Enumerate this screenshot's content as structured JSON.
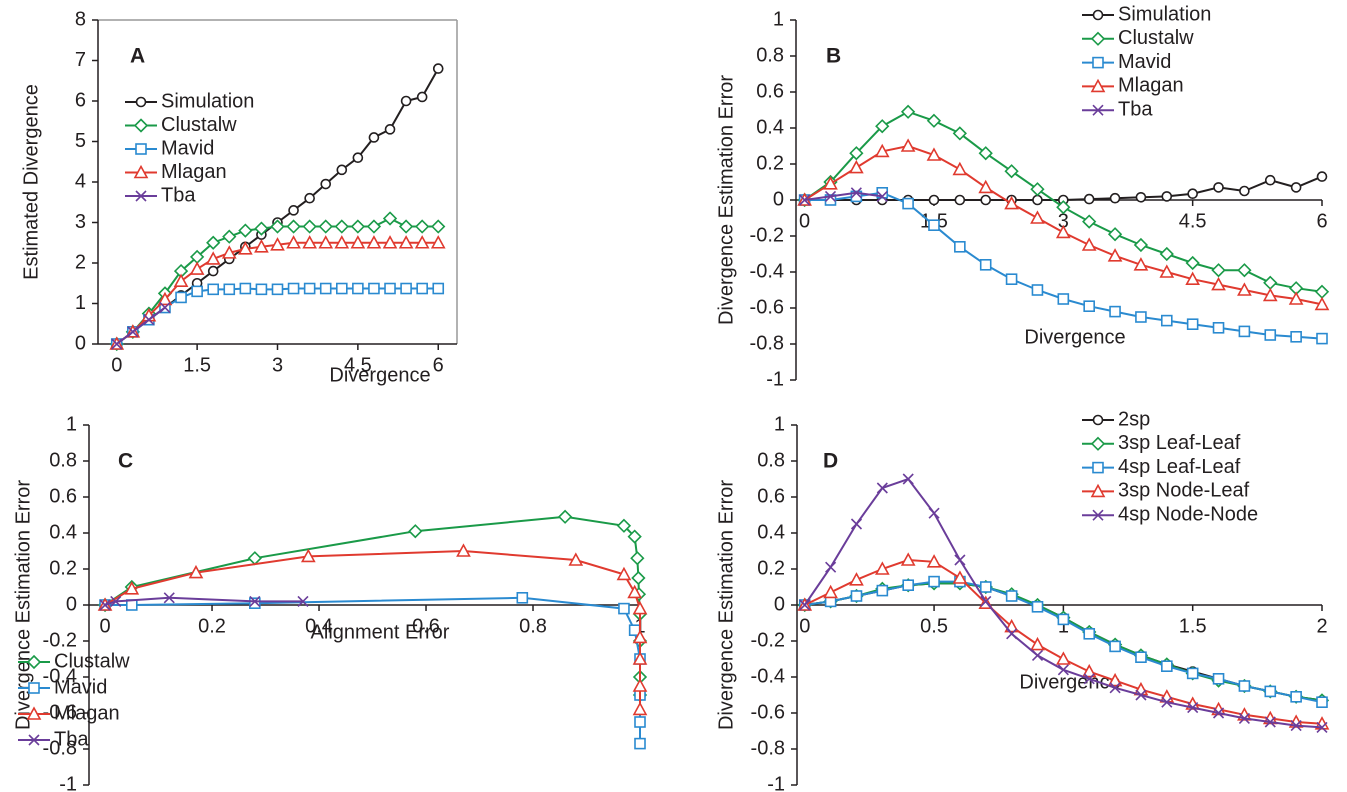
{
  "chart_data": [
    {
      "type": "line",
      "panel_label": "A",
      "x_label": "Divergence",
      "y_label": "Estimated Divergence",
      "xlim": [
        -0.35,
        6.35
      ],
      "ylim": [
        0,
        8
      ],
      "xticks": [
        0,
        1.5,
        3,
        4.5,
        6
      ],
      "yticks": [
        0,
        1,
        2,
        3,
        4,
        5,
        6,
        7,
        8
      ],
      "legend": "upper left",
      "frame": true,
      "x": [
        0,
        0.3,
        0.6,
        0.9,
        1.2,
        1.5,
        1.8,
        2.1,
        2.4,
        2.7,
        3.0,
        3.3,
        3.6,
        3.9,
        4.2,
        4.5,
        4.8,
        5.1,
        5.4,
        5.7,
        6.0
      ],
      "series": [
        {
          "name": "Simulation",
          "color": "#231f20",
          "marker": "circle",
          "values": [
            0,
            0.3,
            0.6,
            0.9,
            1.2,
            1.5,
            1.8,
            2.1,
            2.4,
            2.7,
            3.0,
            3.3,
            3.6,
            3.95,
            4.3,
            4.6,
            5.1,
            5.3,
            6.0,
            6.1,
            6.8
          ]
        },
        {
          "name": "Clustalw",
          "color": "#1a9a48",
          "marker": "diamond",
          "values": [
            0,
            0.3,
            0.75,
            1.25,
            1.8,
            2.15,
            2.5,
            2.65,
            2.8,
            2.85,
            2.9,
            2.9,
            2.9,
            2.9,
            2.9,
            2.9,
            2.9,
            3.1,
            2.9,
            2.9,
            2.9
          ]
        },
        {
          "name": "Mavid",
          "color": "#2a8ad0",
          "marker": "square",
          "values": [
            0,
            0.3,
            0.6,
            0.9,
            1.15,
            1.3,
            1.35,
            1.35,
            1.37,
            1.35,
            1.35,
            1.37,
            1.37,
            1.37,
            1.37,
            1.37,
            1.37,
            1.37,
            1.37,
            1.37,
            1.37
          ]
        },
        {
          "name": "Mlagan",
          "color": "#e03a2f",
          "marker": "triangle",
          "values": [
            0,
            0.3,
            0.7,
            1.1,
            1.55,
            1.85,
            2.1,
            2.25,
            2.35,
            2.4,
            2.45,
            2.5,
            2.5,
            2.5,
            2.5,
            2.5,
            2.5,
            2.5,
            2.5,
            2.5,
            2.5
          ]
        },
        {
          "name": "Tba",
          "color": "#6a3d9a",
          "marker": "x",
          "values": [
            0,
            0.3,
            0.6,
            0.9,
            null,
            null,
            null,
            null,
            null,
            null,
            null,
            null,
            null,
            null,
            null,
            null,
            null,
            null,
            null,
            null,
            null
          ]
        }
      ]
    },
    {
      "type": "line",
      "panel_label": "B",
      "x_label": "Divergence",
      "y_label": "Divergence Estimation Error",
      "xlim": [
        -0.1,
        6
      ],
      "ylim": [
        -1,
        1
      ],
      "xticks": [
        0,
        1.5,
        3,
        4.5,
        6
      ],
      "yticks": [
        -1,
        -0.8,
        -0.6,
        -0.4,
        -0.2,
        0,
        0.2,
        0.4,
        0.6,
        0.8,
        1
      ],
      "legend": "upper right",
      "x": [
        0,
        0.3,
        0.6,
        0.9,
        1.2,
        1.5,
        1.8,
        2.1,
        2.4,
        2.7,
        3.0,
        3.3,
        3.6,
        3.9,
        4.2,
        4.5,
        4.8,
        5.1,
        5.4,
        5.7,
        6.0
      ],
      "series": [
        {
          "name": "Simulation",
          "color": "#231f20",
          "marker": "circle",
          "values": [
            0,
            0,
            0,
            0,
            0,
            0,
            0,
            0,
            0,
            0,
            0,
            0.005,
            0.01,
            0.015,
            0.02,
            0.035,
            0.07,
            0.05,
            0.11,
            0.07,
            0.13
          ]
        },
        {
          "name": "Clustalw",
          "color": "#1a9a48",
          "marker": "diamond",
          "values": [
            0,
            0.1,
            0.26,
            0.41,
            0.49,
            0.44,
            0.37,
            0.26,
            0.16,
            0.06,
            -0.04,
            -0.12,
            -0.19,
            -0.25,
            -0.3,
            -0.35,
            -0.39,
            -0.39,
            -0.46,
            -0.49,
            -0.51
          ]
        },
        {
          "name": "Mavid",
          "color": "#2a8ad0",
          "marker": "square",
          "values": [
            0,
            0,
            0.02,
            0.04,
            -0.02,
            -0.14,
            -0.26,
            -0.36,
            -0.44,
            -0.5,
            -0.55,
            -0.59,
            -0.62,
            -0.65,
            -0.67,
            -0.69,
            -0.71,
            -0.73,
            -0.75,
            -0.76,
            -0.77
          ]
        },
        {
          "name": "Mlagan",
          "color": "#e03a2f",
          "marker": "triangle",
          "values": [
            0,
            0.09,
            0.18,
            0.27,
            0.3,
            0.25,
            0.17,
            0.07,
            -0.02,
            -0.1,
            -0.18,
            -0.25,
            -0.31,
            -0.36,
            -0.4,
            -0.44,
            -0.47,
            -0.5,
            -0.53,
            -0.55,
            -0.58
          ]
        },
        {
          "name": "Tba",
          "color": "#6a3d9a",
          "marker": "x",
          "values": [
            0,
            0.02,
            0.04,
            0.02,
            null,
            null,
            null,
            null,
            null,
            null,
            null,
            null,
            null,
            null,
            null,
            null,
            null,
            null,
            null,
            null,
            null
          ]
        }
      ]
    },
    {
      "type": "line",
      "panel_label": "C",
      "x_label": "Alignment Error",
      "y_label": "Divergence Estimation Error",
      "xlim": [
        -0.03,
        1
      ],
      "ylim": [
        -1,
        1
      ],
      "xticks": [
        0,
        0.2,
        0.4,
        0.6,
        0.8,
        1
      ],
      "yticks": [
        -1,
        -0.8,
        -0.6,
        -0.4,
        -0.2,
        0,
        0.2,
        0.4,
        0.6,
        0.8,
        1
      ],
      "legend": "lower left",
      "series": [
        {
          "name": "Clustalw",
          "color": "#1a9a48",
          "marker": "diamond",
          "x": [
            0,
            0.05,
            0.28,
            0.58,
            0.86,
            0.97,
            0.99,
            0.995,
            0.997,
            0.998,
            1,
            1,
            1,
            1
          ],
          "values": [
            0,
            0.1,
            0.26,
            0.41,
            0.49,
            0.44,
            0.38,
            0.26,
            0.15,
            0.06,
            -0.05,
            -0.2,
            -0.4,
            -0.5
          ]
        },
        {
          "name": "Mavid",
          "color": "#2a8ad0",
          "marker": "square",
          "x": [
            0,
            0.05,
            0.28,
            0.78,
            0.97,
            0.99,
            1,
            1,
            1,
            1
          ],
          "values": [
            0,
            0,
            0.01,
            0.04,
            -0.02,
            -0.14,
            -0.3,
            -0.5,
            -0.65,
            -0.77
          ]
        },
        {
          "name": "Mlagan",
          "color": "#e03a2f",
          "marker": "triangle",
          "x": [
            0,
            0.05,
            0.17,
            0.38,
            0.67,
            0.88,
            0.97,
            0.99,
            1,
            1,
            1,
            1,
            1
          ],
          "values": [
            0,
            0.09,
            0.18,
            0.27,
            0.3,
            0.25,
            0.17,
            0.07,
            -0.02,
            -0.18,
            -0.3,
            -0.45,
            -0.58
          ]
        },
        {
          "name": "Tba",
          "color": "#6a3d9a",
          "marker": "x",
          "x": [
            0,
            0.02,
            0.12,
            0.28,
            0.37
          ],
          "values": [
            0,
            0.02,
            0.04,
            0.02,
            0.02
          ]
        }
      ]
    },
    {
      "type": "line",
      "panel_label": "D",
      "x_label": "Divergence",
      "y_label": "Divergence Estimation Error",
      "xlim": [
        -0.03,
        2
      ],
      "ylim": [
        -1,
        1
      ],
      "xticks": [
        0,
        0.5,
        1,
        1.5,
        2
      ],
      "yticks": [
        -1,
        -0.8,
        -0.6,
        -0.4,
        -0.2,
        0,
        0.2,
        0.4,
        0.6,
        0.8,
        1
      ],
      "legend": "upper right",
      "x": [
        0,
        0.1,
        0.2,
        0.3,
        0.4,
        0.5,
        0.6,
        0.7,
        0.8,
        0.9,
        1.0,
        1.1,
        1.2,
        1.3,
        1.4,
        1.5,
        1.6,
        1.7,
        1.8,
        1.9,
        2.0
      ],
      "series": [
        {
          "name": "2sp",
          "color": "#231f20",
          "marker": "circle",
          "values": [
            0,
            0.02,
            0.05,
            0.08,
            0.11,
            0.12,
            0.12,
            0.1,
            0.05,
            0,
            -0.07,
            -0.15,
            -0.22,
            -0.28,
            -0.33,
            -0.37,
            -0.41,
            -0.45,
            -0.48,
            -0.51,
            -0.53
          ]
        },
        {
          "name": "3sp Leaf-Leaf",
          "color": "#1a9a48",
          "marker": "diamond",
          "values": [
            0,
            0.02,
            0.05,
            0.09,
            0.11,
            0.12,
            0.12,
            0.1,
            0.06,
            0,
            -0.07,
            -0.15,
            -0.22,
            -0.28,
            -0.33,
            -0.38,
            -0.42,
            -0.45,
            -0.48,
            -0.51,
            -0.53
          ]
        },
        {
          "name": "4sp Leaf-Leaf",
          "color": "#2a8ad0",
          "marker": "square",
          "values": [
            0,
            0.02,
            0.05,
            0.08,
            0.11,
            0.13,
            0.13,
            0.1,
            0.05,
            -0.01,
            -0.08,
            -0.16,
            -0.23,
            -0.29,
            -0.34,
            -0.38,
            -0.41,
            -0.45,
            -0.48,
            -0.51,
            -0.54
          ]
        },
        {
          "name": "3sp Node-Leaf",
          "color": "#e03a2f",
          "marker": "triangle",
          "values": [
            0,
            0.07,
            0.14,
            0.2,
            0.25,
            0.24,
            0.15,
            0.01,
            -0.12,
            -0.22,
            -0.3,
            -0.37,
            -0.42,
            -0.47,
            -0.51,
            -0.55,
            -0.58,
            -0.61,
            -0.63,
            -0.65,
            -0.66
          ]
        },
        {
          "name": "4sp Node-Node",
          "color": "#6a3d9a",
          "marker": "x",
          "values": [
            0,
            0.21,
            0.45,
            0.65,
            0.7,
            0.51,
            0.25,
            0.02,
            -0.16,
            -0.28,
            -0.36,
            -0.41,
            -0.46,
            -0.5,
            -0.54,
            -0.57,
            -0.6,
            -0.63,
            -0.65,
            -0.67,
            -0.68
          ]
        }
      ]
    }
  ]
}
